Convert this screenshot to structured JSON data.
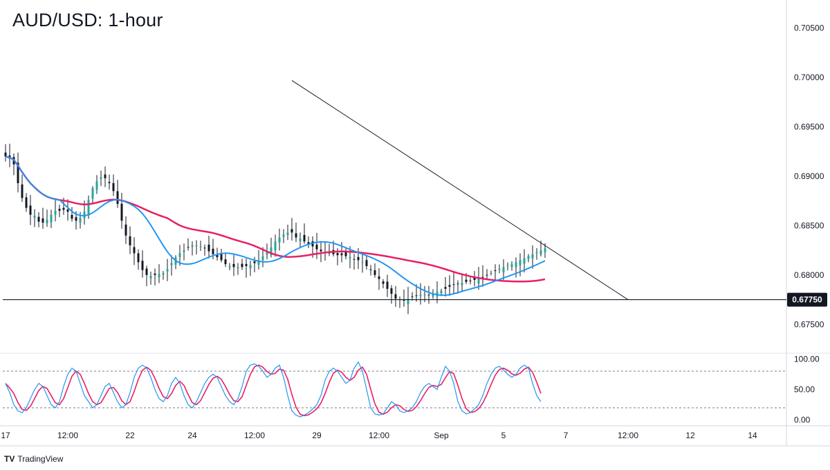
{
  "title": "AUD/USD: 1-hour",
  "brand": "TradingView",
  "brand_logo": "TV",
  "colors": {
    "up_candle": "#26a69a",
    "down_candle": "#131722",
    "ma_fast": "#2196f3",
    "ma_slow": "#e91e63",
    "stoch_k": "#2196f3",
    "stoch_d": "#e91e63",
    "trendline": "#131722",
    "support": "#131722",
    "price_label_bg": "#131722",
    "axis_text": "#131722"
  },
  "chart_data": [
    {
      "type": "candlestick",
      "title": "AUD/USD: 1-hour",
      "ylim": [
        0.6725,
        0.7075
      ],
      "y_ticks": [
        "0.70500",
        "0.70000",
        "0.69500",
        "0.69000",
        "0.68500",
        "0.68000",
        "0.67500"
      ],
      "y_tick_values": [
        0.705,
        0.7,
        0.695,
        0.69,
        0.685,
        0.68,
        0.675
      ],
      "x_ticks": [
        "17",
        "12:00",
        "22",
        "24",
        "12:00",
        "29",
        "12:00",
        "Sep",
        "5",
        "7",
        "12:00",
        "12",
        "14"
      ],
      "x_tick_bars": [
        0,
        15,
        30,
        45,
        60,
        75,
        90,
        105,
        120,
        135,
        150,
        165,
        180
      ],
      "bar_count": 131,
      "price_label": "0.67750",
      "support_level": 0.6775,
      "trendline": {
        "from": {
          "bar": 69,
          "price": 0.6997
        },
        "to": {
          "bar": 150,
          "price": 0.6775
        }
      },
      "closes": [
        0.692,
        0.6918,
        0.6912,
        0.6893,
        0.6878,
        0.6868,
        0.6861,
        0.686,
        0.6854,
        0.6853,
        0.6856,
        0.6861,
        0.6865,
        0.6865,
        0.6866,
        0.6864,
        0.6857,
        0.6855,
        0.6858,
        0.6864,
        0.6876,
        0.6888,
        0.6895,
        0.6899,
        0.6898,
        0.6893,
        0.6885,
        0.6872,
        0.6855,
        0.684,
        0.683,
        0.6822,
        0.6813,
        0.6805,
        0.68,
        0.6799,
        0.68,
        0.6801,
        0.6802,
        0.6806,
        0.6812,
        0.6818,
        0.6822,
        0.6825,
        0.6828,
        0.683,
        0.683,
        0.6829,
        0.6827,
        0.6824,
        0.6821,
        0.6818,
        0.6815,
        0.6811,
        0.6809,
        0.6808,
        0.6808,
        0.6808,
        0.6809,
        0.681,
        0.6812,
        0.6815,
        0.6819,
        0.6823,
        0.6828,
        0.6834,
        0.6838,
        0.6841,
        0.6843,
        0.6843,
        0.6838,
        0.6837,
        0.6834,
        0.6831,
        0.6829,
        0.6826,
        0.6824,
        0.6823,
        0.6822,
        0.6821,
        0.682,
        0.682,
        0.6819,
        0.6818,
        0.6816,
        0.6815,
        0.6813,
        0.6809,
        0.6805,
        0.68,
        0.6796,
        0.6791,
        0.6786,
        0.6781,
        0.6776,
        0.6775,
        0.6774,
        0.6776,
        0.6778,
        0.6779,
        0.678,
        0.678,
        0.678,
        0.6781,
        0.6783,
        0.6784,
        0.6786,
        0.6788,
        0.679,
        0.6791,
        0.6792,
        0.6793,
        0.6794,
        0.6795,
        0.6797,
        0.6798,
        0.68,
        0.6802,
        0.6804,
        0.6806,
        0.6808,
        0.681,
        0.6811,
        0.6813,
        0.6815,
        0.6817,
        0.6819,
        0.6821,
        0.6823,
        0.6825,
        0.6827
      ],
      "series": [
        {
          "name": "",
          "kind": "moving-average",
          "color": "#2196f3"
        },
        {
          "name": "",
          "kind": "moving-average",
          "color": "#e91e63"
        }
      ]
    },
    {
      "type": "line",
      "ylim": [
        -5,
        105
      ],
      "y_ticks": [
        "100.00",
        "50.00",
        "0.00"
      ],
      "y_tick_values": [
        100,
        50,
        0
      ],
      "levels": [
        80,
        20
      ],
      "k": [
        60,
        45,
        25,
        15,
        12,
        20,
        35,
        50,
        60,
        55,
        40,
        25,
        20,
        30,
        55,
        75,
        85,
        80,
        60,
        40,
        30,
        20,
        25,
        40,
        55,
        60,
        45,
        30,
        20,
        25,
        45,
        70,
        85,
        90,
        85,
        70,
        50,
        35,
        30,
        40,
        60,
        70,
        60,
        40,
        25,
        20,
        30,
        45,
        60,
        70,
        75,
        70,
        55,
        40,
        30,
        25,
        35,
        55,
        80,
        90,
        92,
        88,
        80,
        70,
        75,
        85,
        90,
        70,
        40,
        15,
        8,
        5,
        8,
        12,
        18,
        25,
        40,
        65,
        80,
        85,
        80,
        70,
        60,
        65,
        85,
        95,
        80,
        50,
        20,
        10,
        8,
        10,
        20,
        30,
        25,
        15,
        12,
        15,
        20,
        30,
        45,
        55,
        60,
        55,
        50,
        70,
        88,
        80,
        60,
        30,
        15,
        10,
        12,
        18,
        25,
        40,
        60,
        75,
        85,
        88,
        82,
        75,
        70,
        75,
        85,
        90,
        85,
        60,
        40,
        30
      ]
    }
  ]
}
